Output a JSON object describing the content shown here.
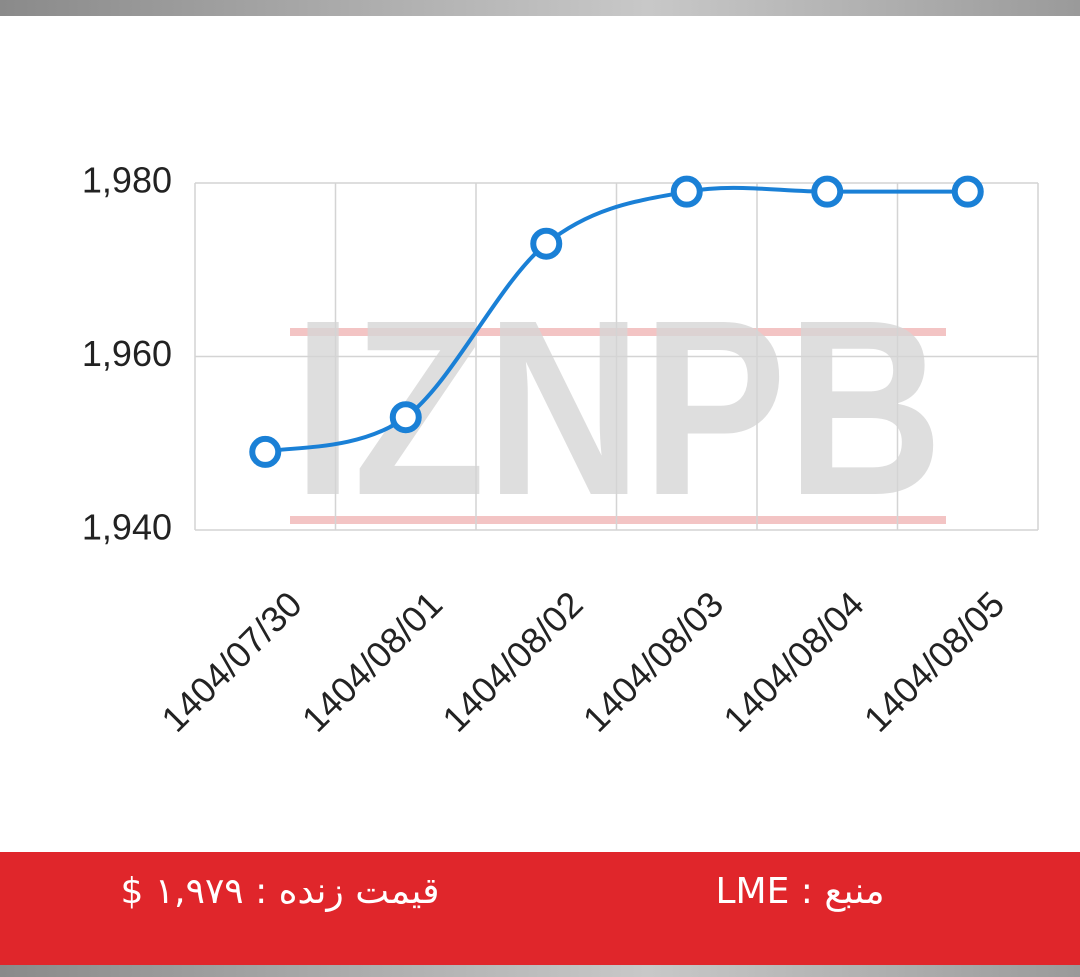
{
  "chart_data": {
    "type": "line",
    "categories": [
      "1404/07/30",
      "1404/08/01",
      "1404/08/02",
      "1404/08/03",
      "1404/08/04",
      "1404/08/05"
    ],
    "values": [
      1949,
      1953,
      1973,
      1979,
      1979,
      1979
    ],
    "color": "#1a80d6",
    "ylim": [
      1940,
      1980
    ],
    "yticks": [
      {
        "value": 1940,
        "label": "1,940"
      },
      {
        "value": 1960,
        "label": "1,960"
      },
      {
        "value": 1980,
        "label": "1,980"
      }
    ],
    "grid": true,
    "watermark": "IZNPB"
  },
  "footer": {
    "price": "قیمت زنده : ۱,۹۷۹ $",
    "source": "منبع : LME"
  }
}
